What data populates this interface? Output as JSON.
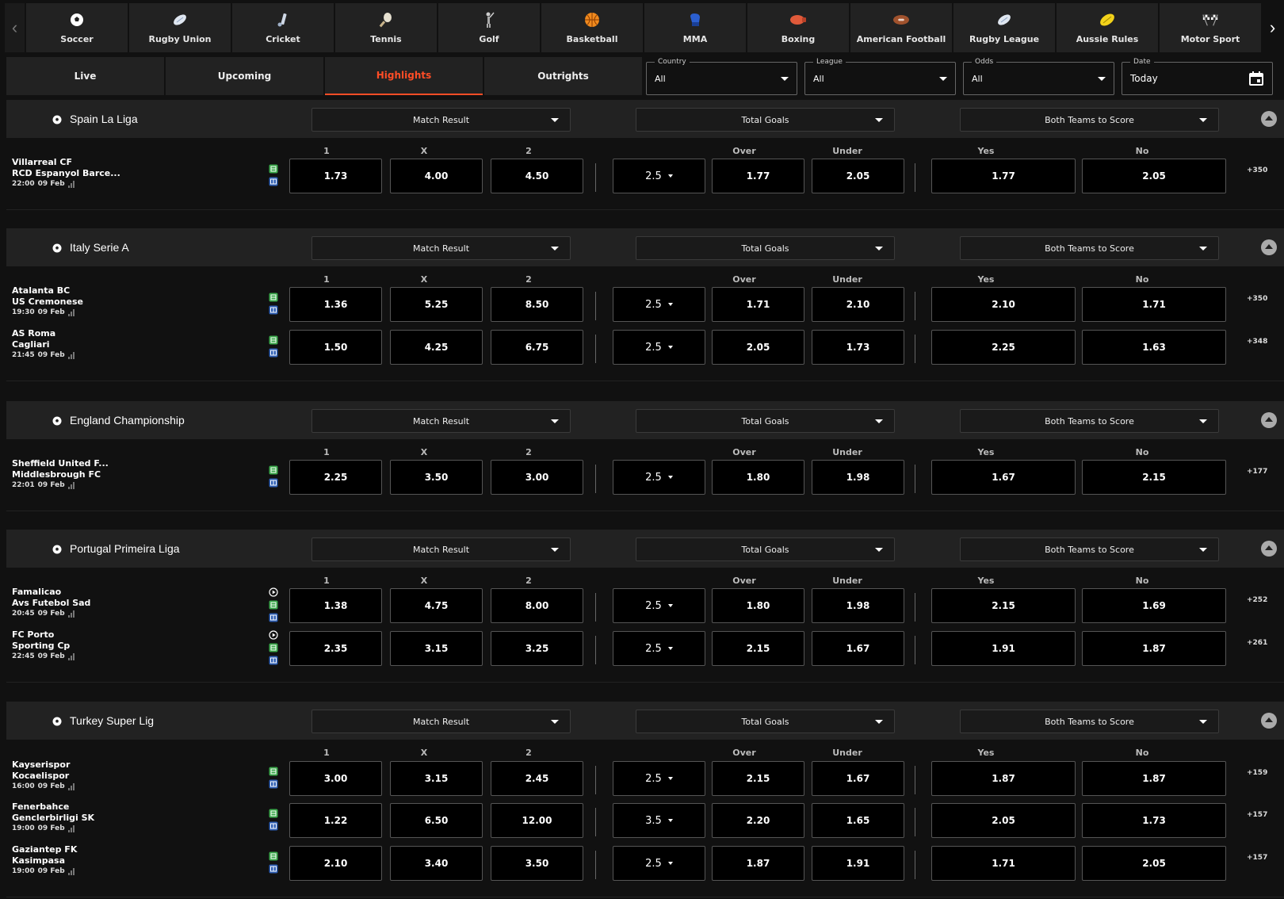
{
  "sports": [
    {
      "label": "Soccer",
      "icon": "soccer-ball-icon"
    },
    {
      "label": "Rugby Union",
      "icon": "rugby-ball-icon"
    },
    {
      "label": "Cricket",
      "icon": "cricket-icon"
    },
    {
      "label": "Tennis",
      "icon": "tennis-icon"
    },
    {
      "label": "Golf",
      "icon": "golf-icon"
    },
    {
      "label": "Basketball",
      "icon": "basketball-icon"
    },
    {
      "label": "MMA",
      "icon": "mma-glove-icon"
    },
    {
      "label": "Boxing",
      "icon": "boxing-glove-icon"
    },
    {
      "label": "American Football",
      "icon": "american-football-icon"
    },
    {
      "label": "Rugby League",
      "icon": "rugby-ball-icon"
    },
    {
      "label": "Aussie Rules",
      "icon": "aussie-rules-ball-icon"
    },
    {
      "label": "Motor Sport",
      "icon": "checkered-flags-icon"
    }
  ],
  "tabs": [
    "Live",
    "Upcoming",
    "Highlights",
    "Outrights"
  ],
  "active_tab": "Highlights",
  "filters": {
    "country": {
      "label": "Country",
      "value": "All"
    },
    "league": {
      "label": "League",
      "value": "All"
    },
    "odds": {
      "label": "Odds",
      "value": "All"
    },
    "date": {
      "label": "Date",
      "value": "Today"
    }
  },
  "markets": {
    "m1": "Match Result",
    "m2": "Total Goals",
    "m3": "Both Teams to Score"
  },
  "colhdrs": {
    "h1": "1",
    "hx": "X",
    "h2": "2",
    "over": "Over",
    "under": "Under",
    "yes": "Yes",
    "no": "No"
  },
  "leagues": [
    {
      "name": "Spain La Liga",
      "matches": [
        {
          "home": "Villarreal CF",
          "away": "RCD Espanyol Barce...",
          "time": "22:00",
          "date": "09 Feb",
          "video": false,
          "odds": [
            "1.73",
            "4.00",
            "4.50"
          ],
          "line": "2.5",
          "ou": [
            "1.77",
            "2.05"
          ],
          "btts": [
            "1.77",
            "2.05"
          ],
          "more": "+350"
        }
      ]
    },
    {
      "name": "Italy Serie A",
      "matches": [
        {
          "home": "Atalanta BC",
          "away": "US Cremonese",
          "time": "19:30",
          "date": "09 Feb",
          "video": false,
          "odds": [
            "1.36",
            "5.25",
            "8.50"
          ],
          "line": "2.5",
          "ou": [
            "1.71",
            "2.10"
          ],
          "btts": [
            "2.10",
            "1.71"
          ],
          "more": "+350"
        },
        {
          "home": "AS Roma",
          "away": "Cagliari",
          "time": "21:45",
          "date": "09 Feb",
          "video": false,
          "odds": [
            "1.50",
            "4.25",
            "6.75"
          ],
          "line": "2.5",
          "ou": [
            "2.05",
            "1.73"
          ],
          "btts": [
            "2.25",
            "1.63"
          ],
          "more": "+348"
        }
      ]
    },
    {
      "name": "England Championship",
      "matches": [
        {
          "home": "Sheffield United F...",
          "away": "Middlesbrough FC",
          "time": "22:01",
          "date": "09 Feb",
          "video": false,
          "odds": [
            "2.25",
            "3.50",
            "3.00"
          ],
          "line": "2.5",
          "ou": [
            "1.80",
            "1.98"
          ],
          "btts": [
            "1.67",
            "2.15"
          ],
          "more": "+177"
        }
      ]
    },
    {
      "name": "Portugal Primeira Liga",
      "matches": [
        {
          "home": "Famalicao",
          "away": "Avs Futebol Sad",
          "time": "20:45",
          "date": "09 Feb",
          "video": true,
          "odds": [
            "1.38",
            "4.75",
            "8.00"
          ],
          "line": "2.5",
          "ou": [
            "1.80",
            "1.98"
          ],
          "btts": [
            "2.15",
            "1.69"
          ],
          "more": "+252"
        },
        {
          "home": "FC Porto",
          "away": "Sporting Cp",
          "time": "22:45",
          "date": "09 Feb",
          "video": true,
          "odds": [
            "2.35",
            "3.15",
            "3.25"
          ],
          "line": "2.5",
          "ou": [
            "2.15",
            "1.67"
          ],
          "btts": [
            "1.91",
            "1.87"
          ],
          "more": "+261"
        }
      ]
    },
    {
      "name": "Turkey Super Lig",
      "matches": [
        {
          "home": "Kayserispor",
          "away": "Kocaelispor",
          "time": "16:00",
          "date": "09 Feb",
          "video": false,
          "odds": [
            "3.00",
            "3.15",
            "2.45"
          ],
          "line": "2.5",
          "ou": [
            "2.15",
            "1.67"
          ],
          "btts": [
            "1.87",
            "1.87"
          ],
          "more": "+159"
        },
        {
          "home": "Fenerbahce",
          "away": "Genclerbirligi SK",
          "time": "19:00",
          "date": "09 Feb",
          "video": false,
          "odds": [
            "1.22",
            "6.50",
            "12.00"
          ],
          "line": "3.5",
          "ou": [
            "2.20",
            "1.65"
          ],
          "btts": [
            "2.05",
            "1.73"
          ],
          "more": "+157"
        },
        {
          "home": "Gaziantep FK",
          "away": "Kasimpasa",
          "time": "19:00",
          "date": "09 Feb",
          "video": false,
          "odds": [
            "2.10",
            "3.40",
            "3.50"
          ],
          "line": "2.5",
          "ou": [
            "1.87",
            "1.91"
          ],
          "btts": [
            "1.71",
            "2.05"
          ],
          "more": "+157"
        }
      ]
    }
  ],
  "colors": {
    "accent": "#ff4d26",
    "bg": "#111111",
    "panel": "#222222"
  }
}
